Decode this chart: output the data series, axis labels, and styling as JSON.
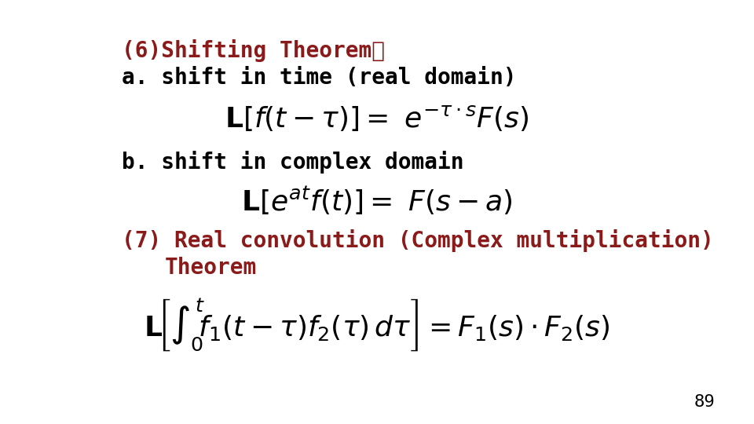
{
  "background_color": "#ffffff",
  "text_color": "#000000",
  "dark_red": "#8B1A1A",
  "line1": "(6)Shifting Theorem：",
  "line2": "a. shift in time (real domain)",
  "line3": "b. shift in complex domain",
  "line4": "(7) Real convolution (Complex multiplication)",
  "line5": "Theorem",
  "page_number": "89",
  "font_size_text": 20,
  "font_size_formula": 26,
  "font_size_page": 16,
  "fig_width": 9.6,
  "fig_height": 5.4,
  "dpi": 100
}
